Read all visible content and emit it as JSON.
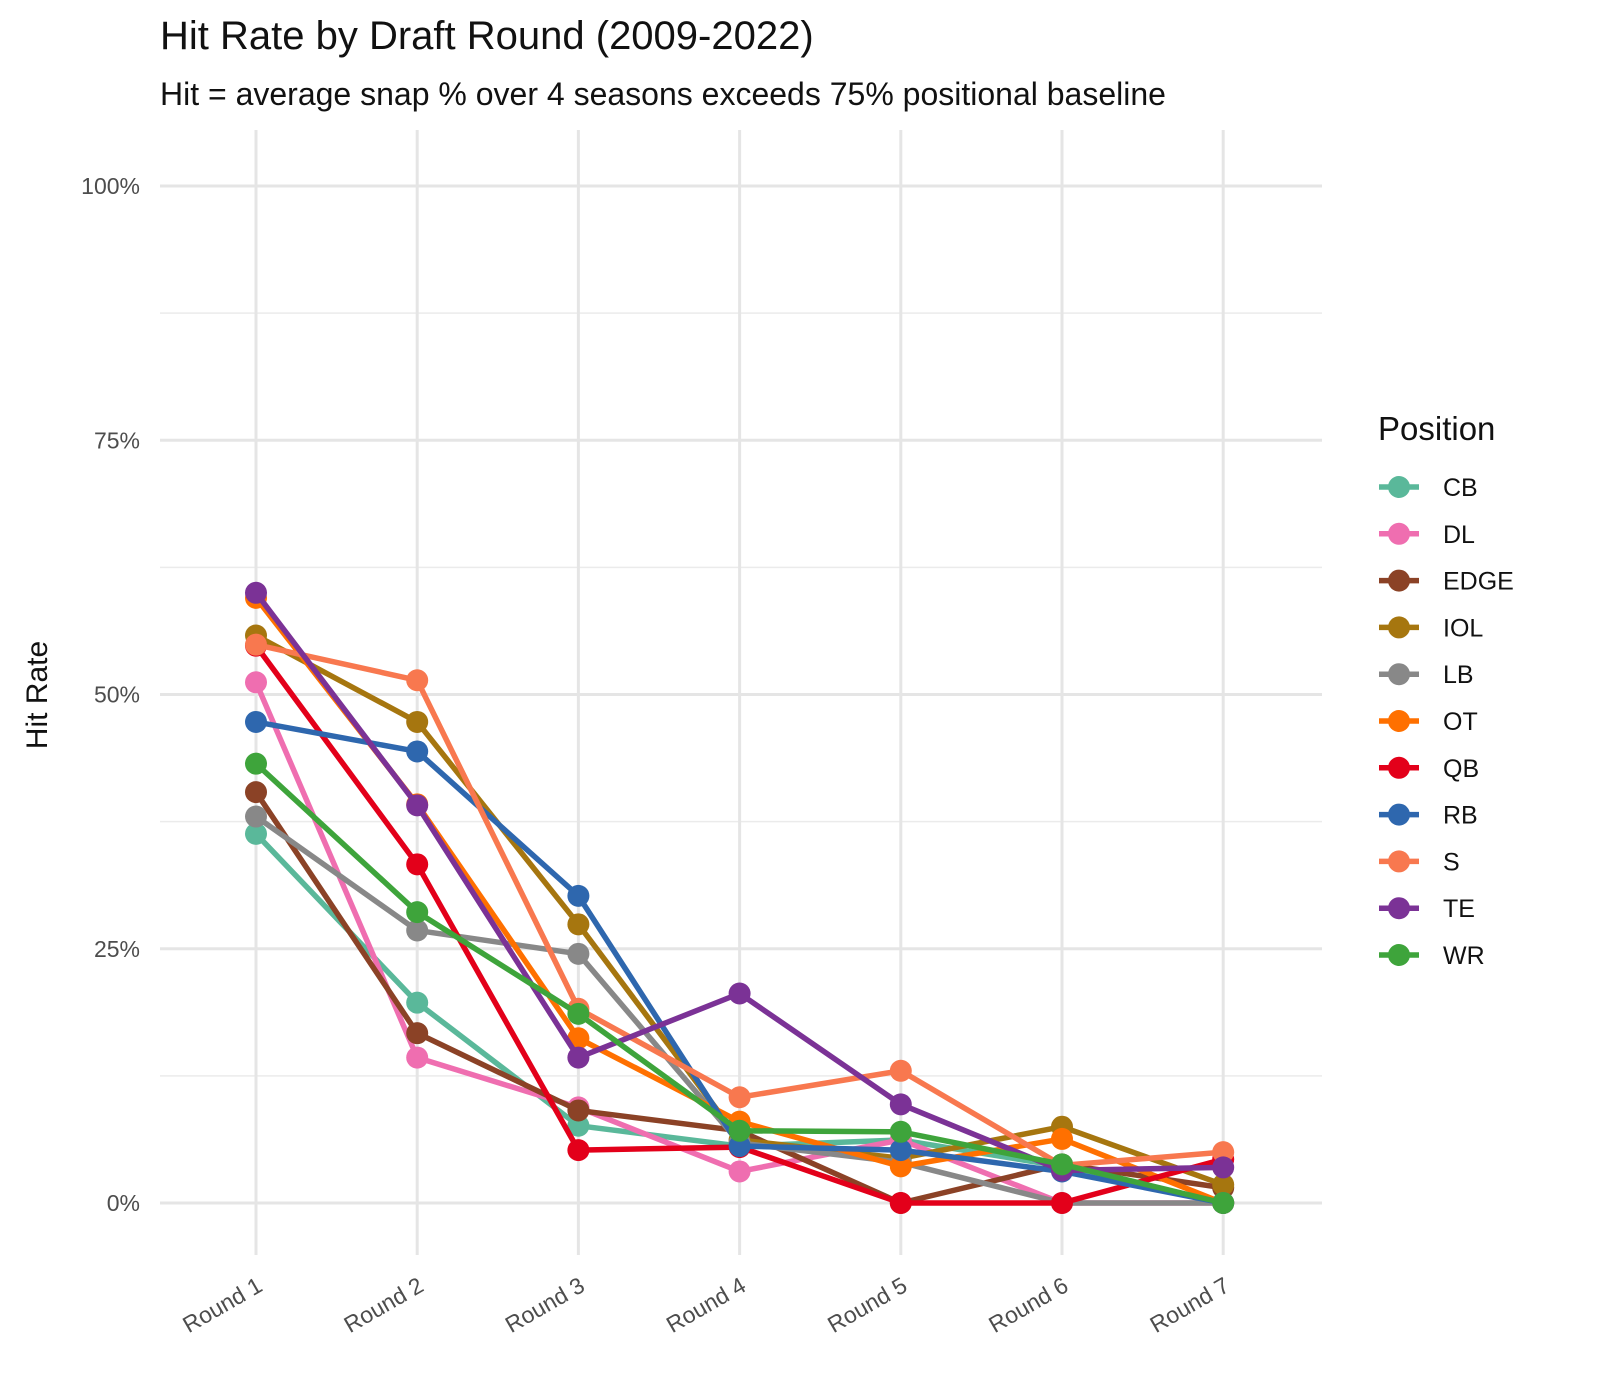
{
  "chart_data": {
    "type": "line",
    "title": "Hit Rate by Draft Round (2009-2022)",
    "subtitle": "Hit = average snap % over 4 seasons exceeds 75% positional baseline",
    "xlabel": "",
    "ylabel": "Hit Rate",
    "categories": [
      "Round 1",
      "Round 2",
      "Round 3",
      "Round 4",
      "Round 5",
      "Round 6",
      "Round 7"
    ],
    "ylim": [
      0,
      1
    ],
    "y_ticks": [
      0,
      0.25,
      0.5,
      0.75,
      1.0
    ],
    "y_tick_labels": [
      "0%",
      "25%",
      "50%",
      "75%",
      "100%"
    ],
    "grid": true,
    "legend": {
      "title": "Position",
      "placement": "right"
    },
    "series": [
      {
        "name": "CB",
        "color": "#5ab89a",
        "values": [
          0.363,
          0.197,
          0.076,
          0.056,
          0.062,
          0.036,
          0.0
        ]
      },
      {
        "name": "DL",
        "color": "#ef6eb0",
        "values": [
          0.512,
          0.143,
          0.094,
          0.031,
          0.062,
          0.0,
          0.0
        ]
      },
      {
        "name": "EDGE",
        "color": "#8b4226",
        "values": [
          0.404,
          0.167,
          0.091,
          0.071,
          0.0,
          0.038,
          0.015
        ]
      },
      {
        "name": "IOL",
        "color": "#a6760f",
        "values": [
          0.558,
          0.473,
          0.274,
          0.062,
          0.044,
          0.075,
          0.018
        ]
      },
      {
        "name": "LB",
        "color": "#888888",
        "values": [
          0.38,
          0.268,
          0.245,
          0.059,
          0.04,
          0.0,
          0.0
        ]
      },
      {
        "name": "OT",
        "color": "#ff7000",
        "values": [
          0.595,
          0.392,
          0.162,
          0.08,
          0.036,
          0.063,
          0.0
        ]
      },
      {
        "name": "QB",
        "color": "#e3001a",
        "values": [
          0.548,
          0.333,
          0.052,
          0.055,
          0.0,
          0.0,
          0.043
        ]
      },
      {
        "name": "RB",
        "color": "#2e67ae",
        "values": [
          0.473,
          0.444,
          0.302,
          0.056,
          0.052,
          0.031,
          0.0
        ]
      },
      {
        "name": "S",
        "color": "#f8784f",
        "values": [
          0.549,
          0.514,
          0.191,
          0.104,
          0.13,
          0.037,
          0.05
        ]
      },
      {
        "name": "TE",
        "color": "#7b3296",
        "values": [
          0.6,
          0.391,
          0.143,
          0.206,
          0.097,
          0.032,
          0.035
        ]
      },
      {
        "name": "WR",
        "color": "#3ea43b",
        "values": [
          0.432,
          0.286,
          0.186,
          0.071,
          0.07,
          0.038,
          0.0
        ]
      }
    ]
  }
}
